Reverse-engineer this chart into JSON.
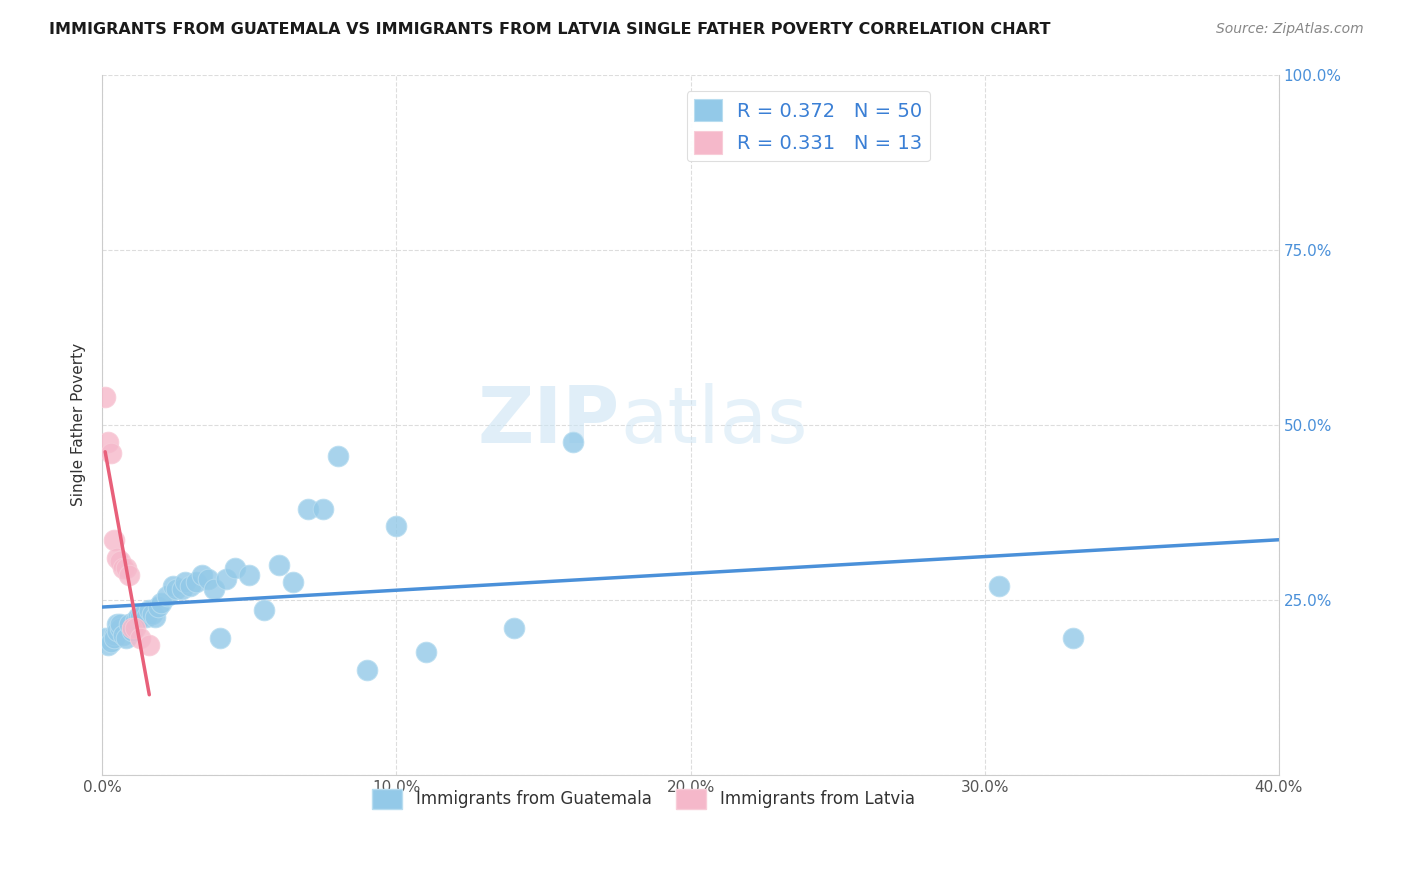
{
  "title": "IMMIGRANTS FROM GUATEMALA VS IMMIGRANTS FROM LATVIA SINGLE FATHER POVERTY CORRELATION CHART",
  "source": "Source: ZipAtlas.com",
  "ylabel": "Single Father Poverty",
  "xlim": [
    0.0,
    0.4
  ],
  "ylim": [
    0.0,
    1.0
  ],
  "xticks": [
    0.0,
    0.1,
    0.2,
    0.3,
    0.4
  ],
  "yticks": [
    0.0,
    0.25,
    0.5,
    0.75,
    1.0
  ],
  "xtick_labels": [
    "0.0%",
    "10.0%",
    "20.0%",
    "30.0%",
    "40.0%"
  ],
  "ytick_labels_right": [
    "",
    "25.0%",
    "50.0%",
    "75.0%",
    "100.0%"
  ],
  "R_guatemala": 0.372,
  "N_guatemala": 50,
  "R_latvia": 0.331,
  "N_latvia": 13,
  "color_guatemala": "#93c9e8",
  "color_latvia": "#f5b8ca",
  "color_trendline_guatemala": "#4a90d9",
  "color_trendline_latvia": "#e8607a",
  "color_refline": "#f5b8ca",
  "watermark_zip": "ZIP",
  "watermark_atlas": "atlas",
  "guatemala_x": [
    0.001,
    0.002,
    0.003,
    0.004,
    0.004,
    0.005,
    0.005,
    0.006,
    0.006,
    0.007,
    0.008,
    0.009,
    0.01,
    0.011,
    0.012,
    0.013,
    0.014,
    0.015,
    0.016,
    0.017,
    0.018,
    0.019,
    0.02,
    0.022,
    0.024,
    0.025,
    0.027,
    0.028,
    0.03,
    0.032,
    0.034,
    0.036,
    0.038,
    0.04,
    0.042,
    0.045,
    0.05,
    0.055,
    0.06,
    0.065,
    0.07,
    0.075,
    0.08,
    0.09,
    0.1,
    0.11,
    0.14,
    0.16,
    0.305,
    0.33
  ],
  "guatemala_y": [
    0.195,
    0.185,
    0.19,
    0.2,
    0.195,
    0.215,
    0.205,
    0.21,
    0.215,
    0.2,
    0.195,
    0.215,
    0.205,
    0.22,
    0.225,
    0.225,
    0.23,
    0.225,
    0.235,
    0.23,
    0.225,
    0.24,
    0.245,
    0.255,
    0.27,
    0.265,
    0.265,
    0.275,
    0.27,
    0.275,
    0.285,
    0.28,
    0.265,
    0.195,
    0.28,
    0.295,
    0.285,
    0.235,
    0.3,
    0.275,
    0.38,
    0.38,
    0.455,
    0.15,
    0.355,
    0.175,
    0.21,
    0.475,
    0.27,
    0.195
  ],
  "latvia_x": [
    0.001,
    0.002,
    0.003,
    0.004,
    0.005,
    0.006,
    0.007,
    0.008,
    0.009,
    0.01,
    0.011,
    0.013,
    0.016
  ],
  "latvia_y": [
    0.54,
    0.475,
    0.46,
    0.335,
    0.31,
    0.305,
    0.295,
    0.295,
    0.285,
    0.21,
    0.21,
    0.195,
    0.185
  ]
}
